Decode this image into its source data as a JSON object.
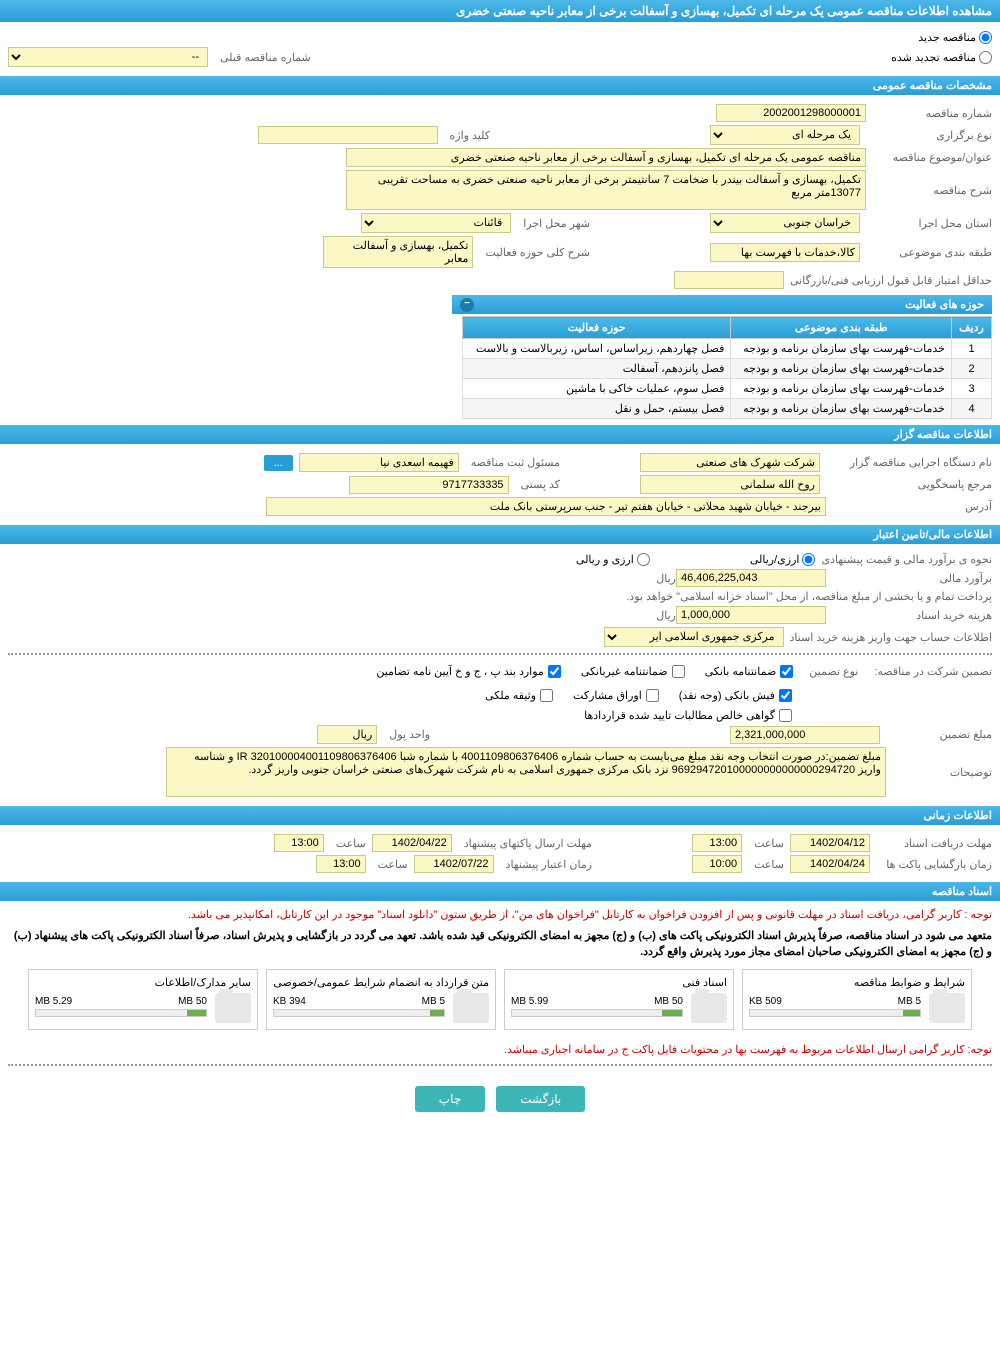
{
  "page_title": "مشاهده اطلاعات مناقصه عمومی یک مرحله ای تکمیل، بهسازی و آسفالت برخی از معابر ناحیه صنعتی خضری",
  "tender_type": {
    "new_label": "مناقصه جدید",
    "renewed_label": "مناقصه تجدید شده",
    "prev_number_label": "شماره مناقصه قبلی",
    "prev_number_value": "--"
  },
  "general_info": {
    "section_title": "مشخصات مناقصه عمومی",
    "tender_number_label": "شماره مناقصه",
    "tender_number": "2002001298000001",
    "holding_type_label": "نوع برگزاری",
    "holding_type": "یک مرحله ای",
    "keyword_label": "کلید واژه",
    "keyword": "",
    "subject_label": "عنوان/موضوع مناقصه",
    "subject": "مناقصه عمومی یک مرحله ای تکمیل، بهسازی و آسفالت برخی از معابر ناحیه صنعتی خضری",
    "description_label": "شرح مناقصه",
    "description": "تکمیل، بهسازی و آسفالت بیندر با ضخامت 7 سانتیمتر برخی از معابر ناحیه صنعتی خضری به مساحت تقریبی 13077متر مربع",
    "province_label": "استان محل اجرا",
    "province": "خراسان جنوبی",
    "city_label": "شهر محل اجرا",
    "city": "قائنات",
    "category_label": "طبقه بندی موضوعی",
    "category": "کالا،خدمات با فهرست بها",
    "activity_scope_label": "شرح کلی حوزه فعالیت",
    "activity_scope": "تکمیل، بهسازی و آسفالت معابر",
    "min_score_label": "حداقل امتیاز قابل قبول ارزیابی فنی/بازرگانی",
    "min_score": ""
  },
  "activity_table": {
    "title": "حوزه های فعالیت",
    "col_row": "ردیف",
    "col_category": "طبقه بندی موضوعی",
    "col_activity": "حوزه فعالیت",
    "rows": [
      {
        "n": "1",
        "cat": "خدمات-فهرست بهای سازمان برنامه و بودجه",
        "act": "فصل چهاردهم، زیراساس، اساس، زیربالاست  و بالاست"
      },
      {
        "n": "2",
        "cat": "خدمات-فهرست بهای سازمان برنامه و بودجه",
        "act": "فصل پانزدهم، آسفالت"
      },
      {
        "n": "3",
        "cat": "خدمات-فهرست بهای سازمان برنامه و بودجه",
        "act": "فصل سوم، عملیات خاکی با ماشین"
      },
      {
        "n": "4",
        "cat": "خدمات-فهرست بهای سازمان برنامه و بودجه",
        "act": "فصل بیستم، حمل و نقل"
      }
    ]
  },
  "organizer": {
    "section_title": "اطلاعات مناقصه گزار",
    "org_label": "نام دستگاه اجرایی مناقصه گزار",
    "org_name": "شرکت شهرک های صنعتی",
    "reg_person_label": "مسئول ثبت مناقصه",
    "reg_person": "فهیمه اسعدی نیا",
    "contact_label": "مرجع پاسخگویی",
    "contact": "روح الله سلمانی",
    "postal_label": "کد پستی",
    "postal": "9717733335",
    "address_label": "آدرس",
    "address": "بیرجند - خیابان شهید محلاتی - خیابان هفتم تیر - جنب سرپرستی بانک ملت",
    "more_btn": "..."
  },
  "financial": {
    "section_title": "اطلاعات مالی/تامین اعتبار",
    "estimate_method_label": "نحوه ی برآورد مالی و قیمت پیشنهادی",
    "rial_option": "ارزی/ریالی",
    "mixed_option": "ارزی و ریالی",
    "estimate_label": "برآورد مالی",
    "estimate_value": "46,406,225,043",
    "currency": "ریال",
    "payment_note": "پرداخت تمام و یا بخشی از مبلغ مناقصه، از محل \"اسناد خزانه اسلامی\" خواهد بود.",
    "doc_cost_label": "هزینه خرید اسناد",
    "doc_cost": "1,000,000",
    "account_label": "اطلاعات حساب جهت واریز هزینه خرید اسناد",
    "account_bank": "مرکزی جمهوری اسلامی ایر"
  },
  "guarantee": {
    "intro_label": "تضمین شرکت در مناقصه:",
    "type_label": "نوع تضمین",
    "opt_bank": "ضمانتنامه بانکی",
    "opt_nonbank": "ضمانتنامه غیربانکی",
    "opt_terms": "موارد بند پ ، ج و خ آیین نامه تضامین",
    "opt_cash": "فیش بانکی (وجه نقد)",
    "opt_bonds": "اوراق مشارکت",
    "opt_property": "وثیقه ملکی",
    "opt_cert": "گواهی خالص مطالبات تایید شده قراردادها",
    "amount_label": "مبلغ تضمین",
    "amount": "2,321,000,000",
    "unit_label": "واحد پول",
    "unit": "ریال",
    "notes_label": "توضیحات",
    "notes": "مبلغ تضمین:در صورت انتخاب وجه نقد مبلغ می‌بایست به حساب شماره 4001109806376406 با شماره شبا IR 320100004001109806376406 و شناسه واریز 969294720100000000000000294720 نزد بانک مرکزی جمهوری اسلامی به نام شرکت شهرک‌های صنعتی خراسان جنوبی واریز گردد."
  },
  "timing": {
    "section_title": "اطلاعات زمانی",
    "receive_label": "مهلت دریافت اسناد",
    "receive_date": "1402/04/12",
    "receive_time": "13:00",
    "submit_label": "مهلت ارسال پاکتهای پیشنهاد",
    "submit_date": "1402/04/22",
    "submit_time": "13:00",
    "open_label": "زمان بازگشایی پاکت ها",
    "open_date": "1402/04/24",
    "open_time": "10:00",
    "valid_label": "زمان اعتبار پیشنهاد",
    "valid_date": "1402/07/22",
    "valid_time": "13:00",
    "time_word": "ساعت"
  },
  "documents": {
    "section_title": "اسناد مناقصه",
    "note1": "توجه : کاربر گرامی، دریافت اسناد در مهلت قانونی و پس از افزودن فراخوان به کارتابل \"فراخوان های من\"، از طریق ستون \"دانلود اسناد\" موجود در این کارتابل، امکانپذیر می باشد.",
    "note2": "متعهد می شود در اسناد مناقصه، صرفاً پذیرش اسناد الکترونیکی پاکت های (ب) و (ج) مجهز به امضای الکترونیکی قید شده باشد. تعهد می گردد در بازگشایی و پذیرش اسناد، صرفاً اسناد الکترونیکی پاکت های پیشنهاد (ب) و (ج) مجهز به امضای الکترونیکی صاحبان امضای مجاز مورد پذیرش واقع گردد.",
    "files": [
      {
        "title": "شرایط و ضوابط مناقصه",
        "size": "509 KB",
        "max": "5 MB",
        "fill": 10
      },
      {
        "title": "اسناد فنی",
        "size": "5.99 MB",
        "max": "50 MB",
        "fill": 12
      },
      {
        "title": "متن قرارداد به انضمام شرایط عمومی/خصوصی",
        "size": "394 KB",
        "max": "5 MB",
        "fill": 8
      },
      {
        "title": "سایر مدارک/اطلاعات",
        "size": "5.29 MB",
        "max": "50 MB",
        "fill": 11
      }
    ],
    "bottom_note": "توجه: کاربر گرامی ارسال اطلاعات مربوط به فهرست بها در محتویات فایل پاکت ج در سامانه اجباری میباشد."
  },
  "buttons": {
    "back": "بازگشت",
    "print": "چاپ"
  },
  "colors": {
    "header_bg": "#2a9dd6",
    "field_bg": "#fcf8c5",
    "field_border": "#c9c98a",
    "red": "#cc0000",
    "btn_teal": "#3bb5b5"
  }
}
